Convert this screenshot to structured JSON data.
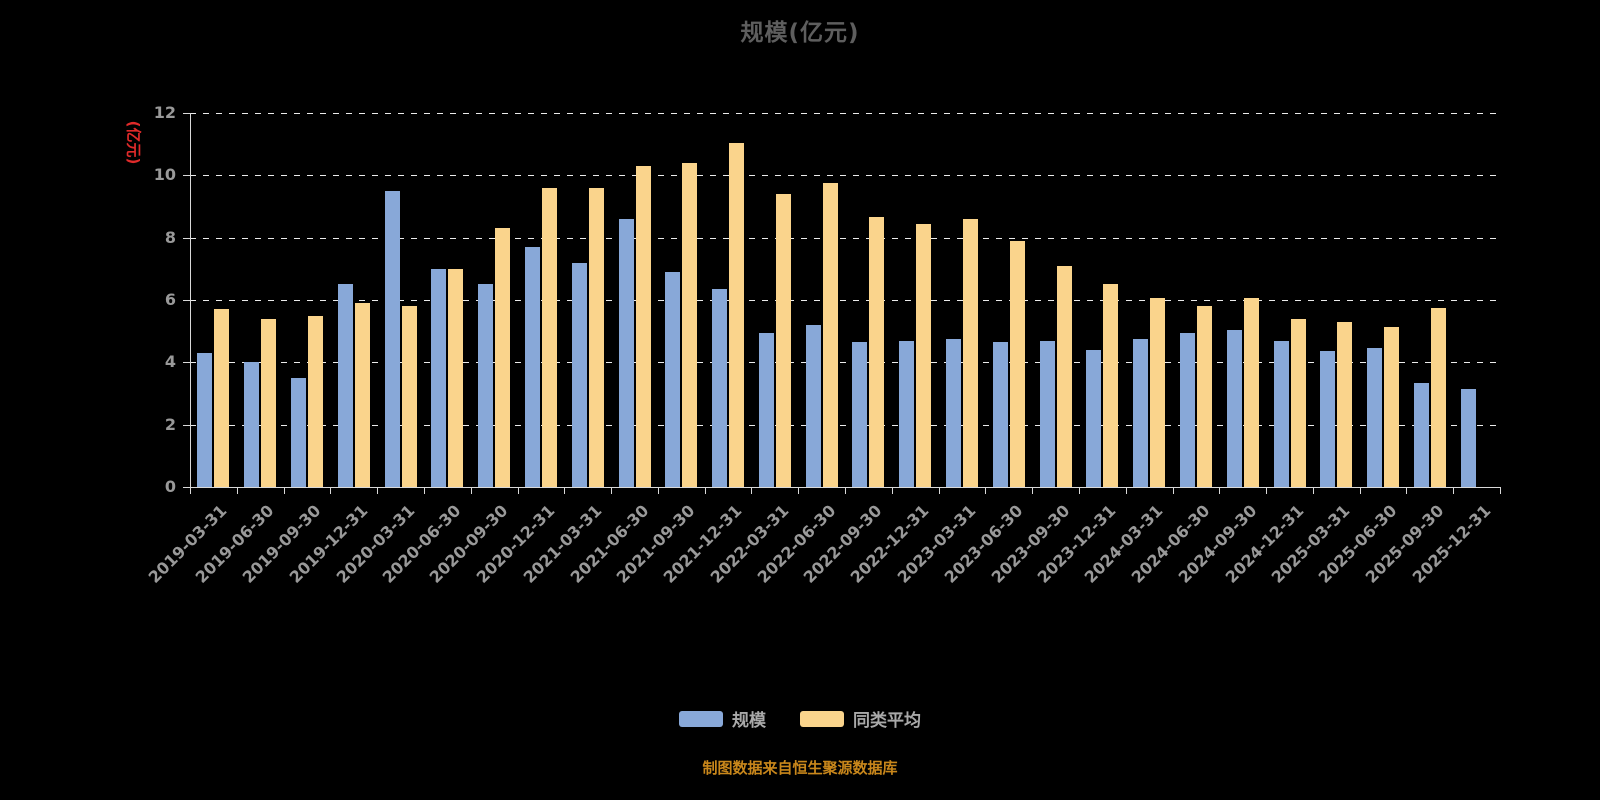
{
  "title": "规模(亿元)",
  "y_axis_unit": "(亿元)",
  "source_note": "制图数据来自恒生聚源数据库",
  "colors": {
    "background": "#000000",
    "title": "#5E5E5E",
    "axis_label": "#999999",
    "axis_line": "#D9D9D9",
    "grid_line": "#FFFFFF",
    "y_unit": "#E02A2A",
    "legend_text": "#A9A9A9",
    "source_text": "#C9871B"
  },
  "chart_data": {
    "type": "bar",
    "title": "规模(亿元)",
    "xlabel": "",
    "ylabel": "(亿元)",
    "ylim": [
      0,
      12
    ],
    "y_ticks": [
      0,
      2,
      4,
      6,
      8,
      10,
      12
    ],
    "grid": "horizontal-dashed",
    "legend_position": "bottom",
    "categories": [
      "2019-03-31",
      "2019-06-30",
      "2019-09-30",
      "2019-12-31",
      "2020-03-31",
      "2020-06-30",
      "2020-09-30",
      "2020-12-31",
      "2021-03-31",
      "2021-06-30",
      "2021-09-30",
      "2021-12-31",
      "2022-03-31",
      "2022-06-30",
      "2022-09-30",
      "2022-12-31",
      "2023-03-31",
      "2023-06-30",
      "2023-09-30",
      "2023-12-31",
      "2024-03-31",
      "2024-06-30",
      "2024-09-30",
      "2024-12-31",
      "2025-03-31",
      "2025-06-30",
      "2025-09-30",
      "2025-12-31"
    ],
    "series": [
      {
        "name": "规模",
        "color": "#88A8D8",
        "values": [
          4.3,
          4.0,
          3.5,
          6.5,
          9.5,
          7.0,
          6.5,
          7.7,
          7.2,
          8.6,
          6.9,
          6.35,
          4.95,
          5.2,
          4.65,
          4.7,
          4.75,
          4.65,
          4.7,
          4.4,
          4.75,
          4.95,
          5.05,
          4.7,
          4.35,
          4.45,
          3.35,
          3.15
        ]
      },
      {
        "name": "同类平均",
        "color": "#FAD48C",
        "values": [
          5.7,
          5.4,
          5.5,
          5.9,
          5.8,
          7.0,
          8.3,
          9.6,
          9.6,
          10.3,
          10.4,
          11.05,
          9.4,
          9.75,
          8.65,
          8.45,
          8.6,
          7.9,
          7.1,
          6.5,
          6.05,
          5.8,
          6.05,
          5.4,
          5.3,
          5.15,
          5.75,
          null
        ]
      }
    ]
  }
}
